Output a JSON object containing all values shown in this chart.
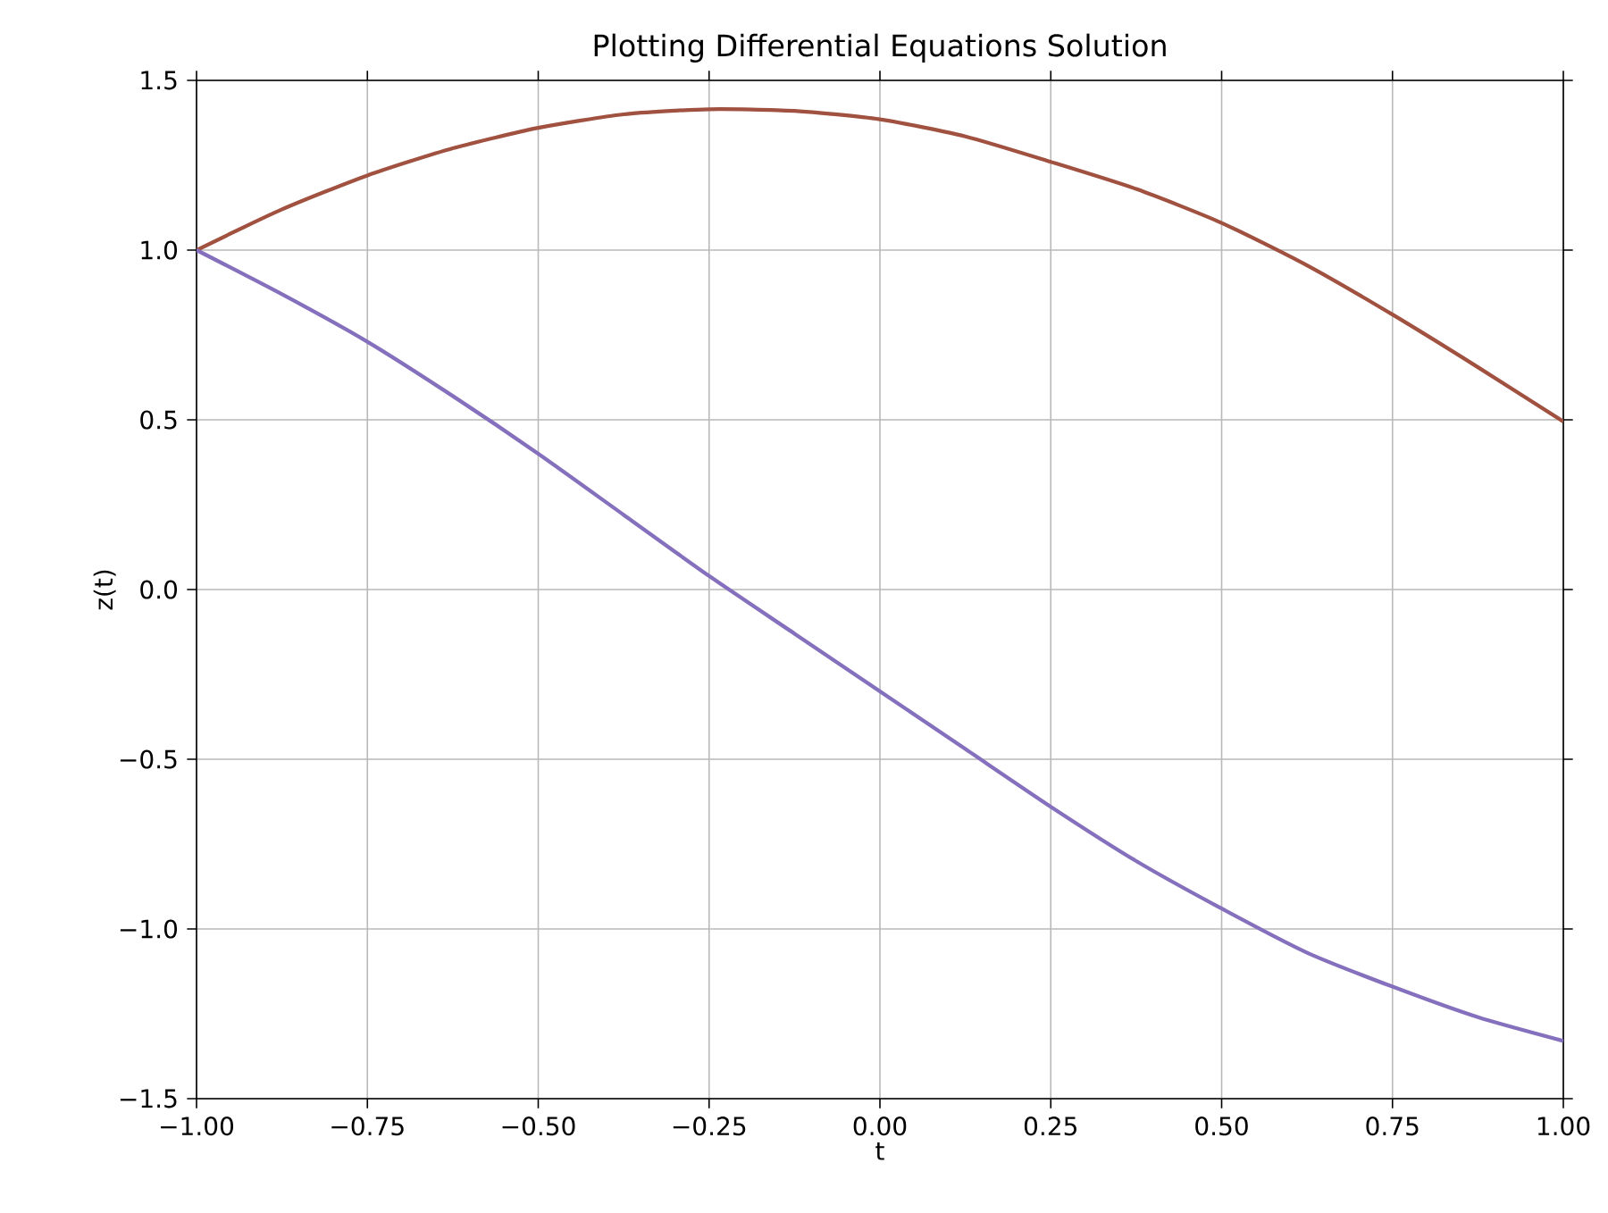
{
  "chart_data": {
    "type": "line",
    "title": "Plotting Differential Equations Solution",
    "xlabel": "t",
    "ylabel": "z(t)",
    "x": [
      -1.0,
      -0.875,
      -0.75,
      -0.625,
      -0.5,
      -0.375,
      -0.25,
      -0.125,
      0.0,
      0.125,
      0.25,
      0.375,
      0.5,
      0.625,
      0.75,
      0.875,
      1.0
    ],
    "series": [
      {
        "color": "#a0513f",
        "values": [
          1.0,
          1.12,
          1.22,
          1.3,
          1.36,
          1.4,
          1.415,
          1.41,
          1.385,
          1.335,
          1.26,
          1.18,
          1.08,
          0.955,
          0.81,
          0.655,
          0.495
        ]
      },
      {
        "color": "#8470bd",
        "values": [
          1.0,
          0.87,
          0.73,
          0.57,
          0.4,
          0.22,
          0.04,
          -0.13,
          -0.3,
          -0.47,
          -0.64,
          -0.8,
          -0.94,
          -1.07,
          -1.17,
          -1.26,
          -1.33
        ]
      }
    ],
    "xlim": [
      -1.0,
      1.0
    ],
    "ylim": [
      -1.5,
      1.5
    ],
    "xticks": [
      {
        "value": -1.0,
        "label": "−1.00"
      },
      {
        "value": -0.75,
        "label": "−0.75"
      },
      {
        "value": -0.5,
        "label": "−0.50"
      },
      {
        "value": -0.25,
        "label": "−0.25"
      },
      {
        "value": 0.0,
        "label": "0.00"
      },
      {
        "value": 0.25,
        "label": "0.25"
      },
      {
        "value": 0.5,
        "label": "0.50"
      },
      {
        "value": 0.75,
        "label": "0.75"
      },
      {
        "value": 1.0,
        "label": "1.00"
      }
    ],
    "yticks": [
      {
        "value": -1.5,
        "label": "−1.5"
      },
      {
        "value": -1.0,
        "label": "−1.0"
      },
      {
        "value": -0.5,
        "label": "−0.5"
      },
      {
        "value": 0.0,
        "label": "0.0"
      },
      {
        "value": 0.5,
        "label": "0.5"
      },
      {
        "value": 1.0,
        "label": "1.0"
      },
      {
        "value": 1.5,
        "label": "1.5"
      }
    ],
    "grid": true,
    "legend": false,
    "marker": "none",
    "line_style": "solid"
  }
}
